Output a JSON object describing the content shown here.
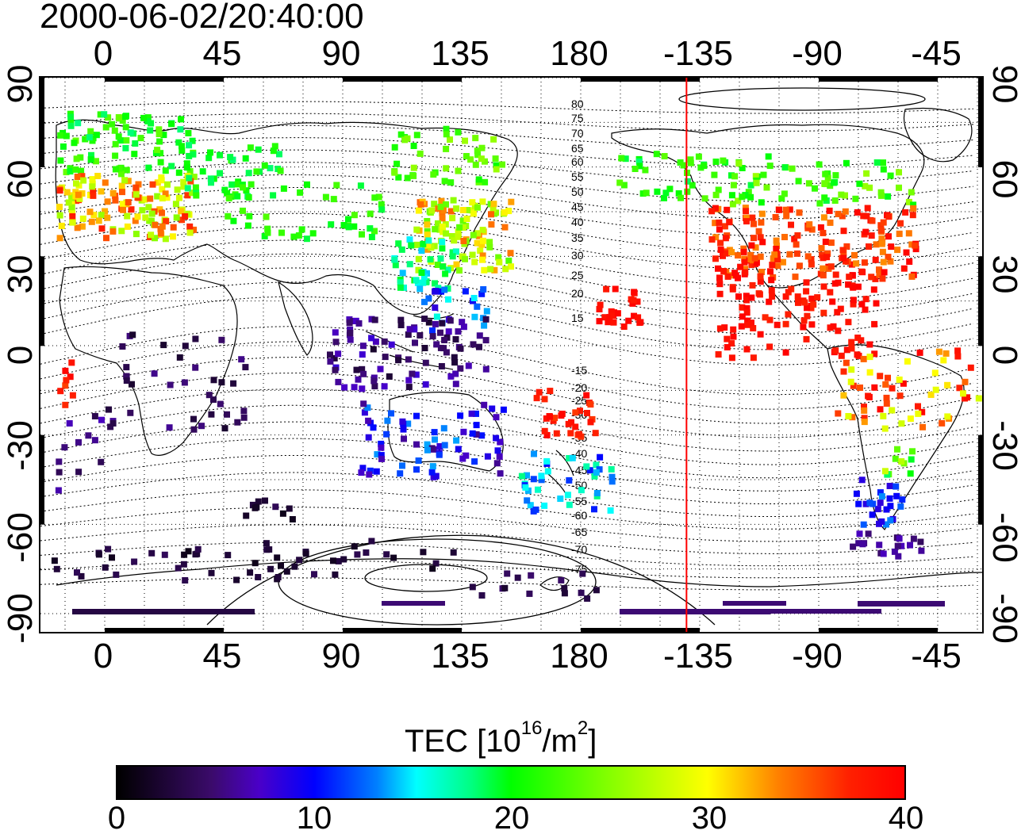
{
  "timestamp": "2000-06-02/20:40:00",
  "lon_ticks": [
    "0",
    "45",
    "90",
    "135",
    "180",
    "-135",
    "-90",
    "-45"
  ],
  "lat_ticks": [
    "90",
    "60",
    "30",
    "0",
    "-30",
    "-60",
    "-90"
  ],
  "mlat_labels": [
    "80",
    "75",
    "70",
    "65",
    "60",
    "55",
    "50",
    "45",
    "40",
    "35",
    "30",
    "25",
    "20",
    "15",
    "-15",
    "-20",
    "-25",
    "-30",
    "-35",
    "-40",
    "-45",
    "-50",
    "-55",
    "-60",
    "-65",
    "-70",
    "-75"
  ],
  "colorbar": {
    "title_main": "TEC  [10",
    "title_exp1": "16",
    "title_mid": "/m",
    "title_exp2": "2",
    "title_end": "]",
    "ticks": [
      "0",
      "10",
      "20",
      "30",
      "40"
    ],
    "min": 0,
    "max": 40
  },
  "colors": {
    "terminator": "#ff0000",
    "grid": "#000000"
  },
  "terminator_lon": -140
}
